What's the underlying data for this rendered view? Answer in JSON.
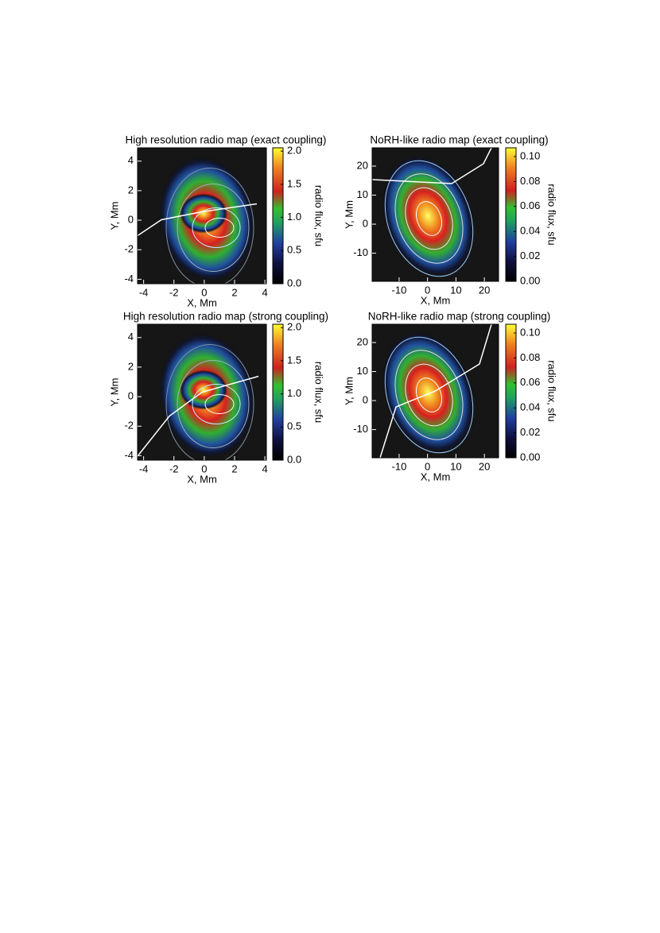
{
  "chart_data": [
    {
      "type": "heatmap",
      "title": "High resolution radio map (exact coupling)",
      "x_label": "X, Mm",
      "y_label": "Y, Mm",
      "xlim": [
        -4.4,
        4.1
      ],
      "ylim": [
        -4.3,
        4.9
      ],
      "xticks": [
        -4,
        -2,
        0,
        2,
        4
      ],
      "yticks": [
        -4,
        -2,
        0,
        2,
        4
      ],
      "colorbar": {
        "label": "radio flux, sfu",
        "lim": [
          0,
          2.05
        ],
        "ticks": [
          {
            "value": 0,
            "label": "0.0"
          },
          {
            "value": 0.5,
            "label": "0.5"
          },
          {
            "value": 1,
            "label": "1.0"
          },
          {
            "value": 1.5,
            "label": "1.5"
          },
          {
            "value": 2,
            "label": "2.0"
          }
        ]
      }
    },
    {
      "type": "heatmap",
      "title": "NoRH-like radio map (exact coupling)",
      "x_label": "X, Mm",
      "y_label": "Y, Mm",
      "xlim": [
        -19.5,
        25
      ],
      "ylim": [
        -19.7,
        26.3
      ],
      "xticks": [
        -10,
        0,
        10,
        20
      ],
      "yticks": [
        -10,
        0,
        10,
        20
      ],
      "colorbar": {
        "label": "radio flux, sfu",
        "lim": [
          0,
          0.107
        ],
        "ticks": [
          {
            "value": 0,
            "label": "0.00"
          },
          {
            "value": 0.02,
            "label": "0.02"
          },
          {
            "value": 0.04,
            "label": "0.04"
          },
          {
            "value": 0.06,
            "label": "0.06"
          },
          {
            "value": 0.08,
            "label": "0.08"
          },
          {
            "value": 0.1,
            "label": "0.10"
          }
        ]
      }
    },
    {
      "type": "heatmap",
      "title": "High resolution radio map (strong coupling)",
      "x_label": "X, Mm",
      "y_label": "Y, Mm",
      "xlim": [
        -4.4,
        4.1
      ],
      "ylim": [
        -4.3,
        4.9
      ],
      "xticks": [
        -4,
        -2,
        0,
        2,
        4
      ],
      "yticks": [
        -4,
        -2,
        0,
        2,
        4
      ],
      "colorbar": {
        "label": "radio flux, sfu",
        "lim": [
          0,
          2.05
        ],
        "ticks": [
          {
            "value": 0,
            "label": "0.0"
          },
          {
            "value": 0.5,
            "label": "0.5"
          },
          {
            "value": 1,
            "label": "1.0"
          },
          {
            "value": 1.5,
            "label": "1.5"
          },
          {
            "value": 2,
            "label": "2.0"
          }
        ]
      }
    },
    {
      "type": "heatmap",
      "title": "NoRH-like radio map (strong coupling)",
      "x_label": "X, Mm",
      "y_label": "Y, Mm",
      "xlim": [
        -19.5,
        25
      ],
      "ylim": [
        -19.7,
        26.3
      ],
      "xticks": [
        -10,
        0,
        10,
        20
      ],
      "yticks": [
        -10,
        0,
        10,
        20
      ],
      "colorbar": {
        "label": "radio flux, sfu",
        "lim": [
          0,
          0.107
        ],
        "ticks": [
          {
            "value": 0,
            "label": "0.00"
          },
          {
            "value": 0.02,
            "label": "0.02"
          },
          {
            "value": 0.04,
            "label": "0.04"
          },
          {
            "value": 0.06,
            "label": "0.06"
          },
          {
            "value": 0.08,
            "label": "0.08"
          },
          {
            "value": 0.1,
            "label": "0.10"
          }
        ]
      }
    }
  ]
}
